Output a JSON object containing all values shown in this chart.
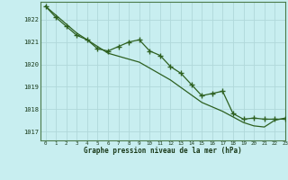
{
  "title": "Graphe pression niveau de la mer (hPa)",
  "background_color": "#c8eef0",
  "grid_color": "#b0d8da",
  "line_color": "#2d6020",
  "xlim": [
    -0.5,
    23
  ],
  "ylim": [
    1016.6,
    1022.8
  ],
  "xticks": [
    0,
    1,
    2,
    3,
    4,
    5,
    6,
    7,
    8,
    9,
    10,
    11,
    12,
    13,
    14,
    15,
    16,
    17,
    18,
    19,
    20,
    21,
    22,
    23
  ],
  "yticks": [
    1017,
    1018,
    1019,
    1020,
    1021,
    1022
  ],
  "series_measured": {
    "x": [
      0,
      1,
      2,
      3,
      4,
      5,
      6,
      7,
      8,
      9,
      10,
      11,
      12,
      13,
      14,
      15,
      16,
      17,
      18,
      19,
      20,
      21,
      22,
      23
    ],
    "y": [
      1022.6,
      1022.1,
      1021.7,
      1021.3,
      1021.1,
      1020.7,
      1020.6,
      1020.8,
      1021.0,
      1021.1,
      1020.6,
      1020.4,
      1019.9,
      1019.6,
      1019.1,
      1018.6,
      1018.7,
      1018.8,
      1017.8,
      1017.55,
      1017.6,
      1017.55,
      1017.55,
      1017.55
    ]
  },
  "series_trend": {
    "x": [
      0,
      3,
      6,
      9,
      12,
      15,
      17,
      18,
      19,
      20,
      21,
      22,
      23
    ],
    "y": [
      1022.6,
      1021.4,
      1020.5,
      1020.1,
      1019.3,
      1018.3,
      1017.9,
      1017.65,
      1017.4,
      1017.25,
      1017.2,
      1017.5,
      1017.6
    ]
  }
}
